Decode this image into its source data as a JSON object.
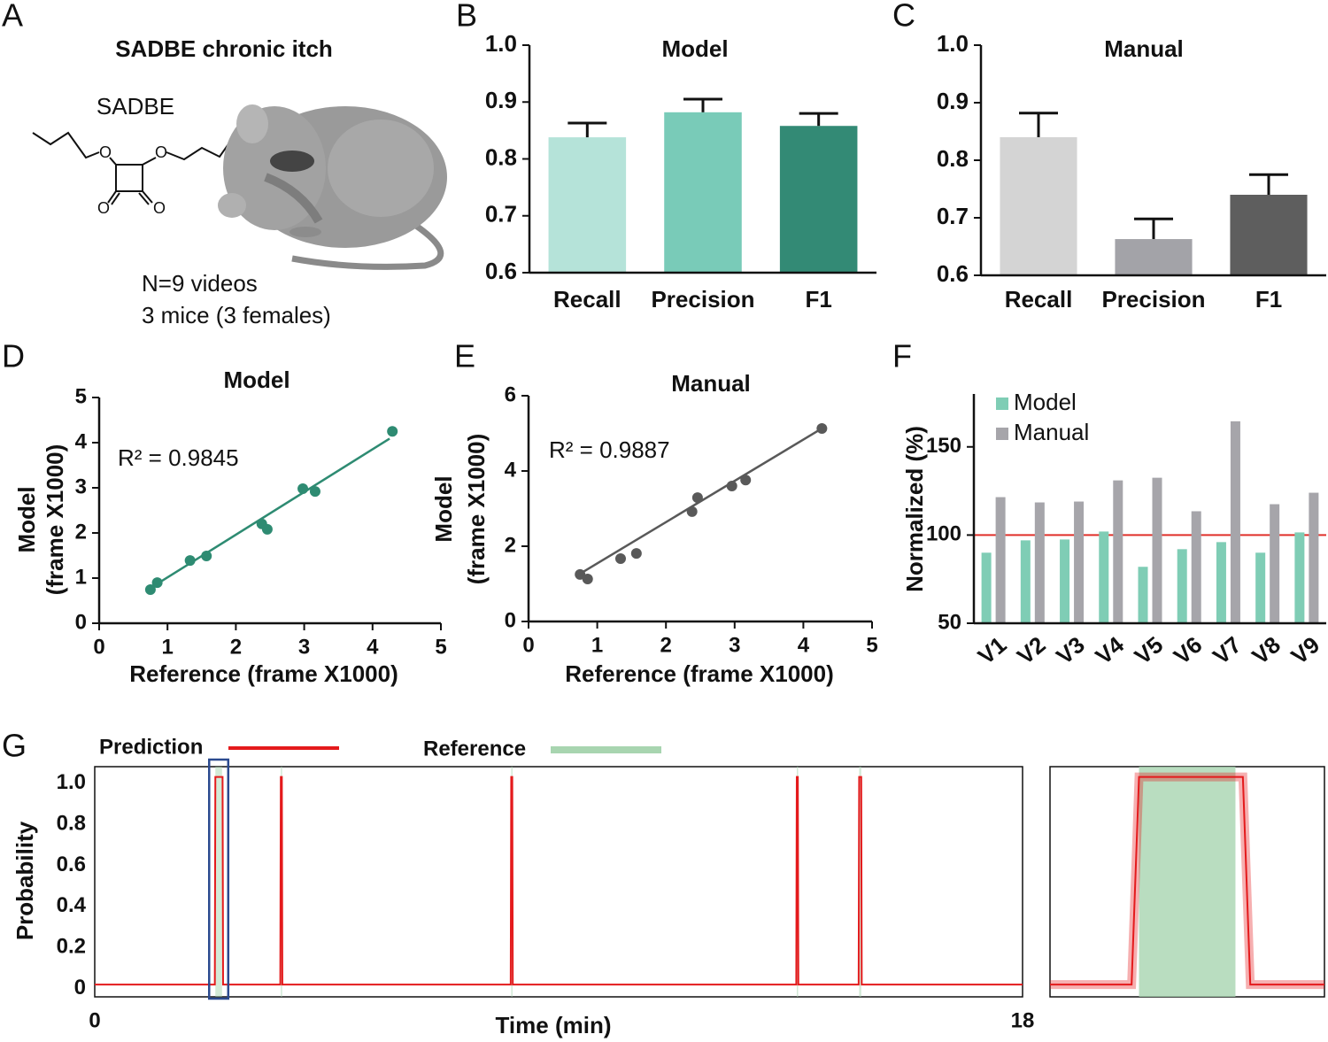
{
  "illustration": {
    "panel": "A",
    "title": "SADBE chronic itch",
    "compound": "SADBE",
    "structure_atoms": [
      "O",
      "O",
      "O",
      "O"
    ],
    "notes": [
      "N=9 videos",
      "3 mice (3 females)"
    ]
  },
  "chart_data": [
    {
      "type": "bar",
      "panel": "B",
      "title": "Model",
      "categories": [
        "Recall",
        "Precision",
        "F1"
      ],
      "values": [
        0.838,
        0.882,
        0.858
      ],
      "errors": [
        0.025,
        0.023,
        0.022
      ],
      "colors": [
        "#b5e3d9",
        "#79cbb8",
        "#338a75"
      ],
      "ylim": [
        0.6,
        1.0
      ],
      "yticks": [
        0.6,
        0.7,
        0.8,
        0.9,
        {
          "value": 1,
          "label": "1.0"
        }
      ]
    },
    {
      "type": "bar",
      "panel": "C",
      "title": "Manual",
      "categories": [
        "Recall",
        "Precision",
        "F1"
      ],
      "values": [
        0.84,
        0.663,
        0.74
      ],
      "errors": [
        0.042,
        0.035,
        0.035
      ],
      "colors": [
        "#d4d4d4",
        "#a3a3a8",
        "#5e5e5e"
      ],
      "ylim": [
        0.6,
        1.0
      ],
      "yticks": [
        0.6,
        0.7,
        0.8,
        0.9,
        {
          "value": 1,
          "label": "1.0"
        }
      ]
    },
    {
      "type": "scatter",
      "panel": "D",
      "title": "Model",
      "xlabel": "Reference (frame X1000)",
      "ylabel": [
        "Model",
        "(frame X1000)"
      ],
      "annotation": "R² = 0.9845",
      "color": "#2e8b72",
      "x": [
        0.75,
        0.85,
        1.33,
        1.57,
        2.38,
        2.46,
        2.98,
        3.16,
        4.29
      ],
      "values": [
        0.745,
        0.9,
        1.39,
        1.49,
        2.2,
        2.08,
        2.98,
        2.92,
        4.25
      ],
      "fit_line": {
        "x": [
          0.73,
          4.25
        ],
        "y": [
          0.76,
          4.09
        ]
      },
      "xlim": [
        0,
        5
      ],
      "ylim": [
        0,
        5
      ],
      "xticks": [
        0,
        1,
        2,
        3,
        4,
        5
      ],
      "yticks": [
        0,
        1,
        2,
        3,
        4,
        5
      ]
    },
    {
      "type": "scatter",
      "panel": "E",
      "title": "Manual",
      "xlabel": "Reference (frame X1000)",
      "ylabel": [
        "Model",
        "(frame X1000)"
      ],
      "annotation": "R² = 0.9887",
      "color": "#595959",
      "x": [
        0.75,
        0.86,
        1.34,
        1.57,
        2.38,
        2.46,
        2.96,
        3.16,
        4.27
      ],
      "values": [
        1.25,
        1.13,
        1.67,
        1.81,
        2.92,
        3.29,
        3.6,
        3.76,
        5.13
      ],
      "fit_line": {
        "x": [
          0.75,
          4.27
        ],
        "y": [
          1.27,
          5.13
        ]
      },
      "xlim": [
        0,
        5
      ],
      "ylim": [
        0,
        6
      ],
      "xticks": [
        0,
        1,
        2,
        3,
        4,
        5
      ],
      "yticks": [
        0,
        2,
        4,
        6
      ]
    },
    {
      "type": "bar",
      "panel": "F",
      "ylabel": "Normalized (%)",
      "categories": [
        "V1",
        "V2",
        "V3",
        "V4",
        "V5",
        "V6",
        "V7",
        "V8",
        "V9"
      ],
      "series": [
        {
          "name": "Model",
          "color": "#7fcdb5",
          "values": [
            90,
            97,
            97.5,
            102,
            82,
            92,
            96,
            90,
            101.5
          ]
        },
        {
          "name": "Manual",
          "color": "#a6a5aa",
          "values": [
            121.5,
            118.5,
            119,
            131,
            132.5,
            113.5,
            164.5,
            117.5,
            124
          ]
        }
      ],
      "reference_line": {
        "value": 100,
        "color": "#e0302a"
      },
      "legend": "upper-left",
      "ylim": [
        50,
        180
      ],
      "yticks": [
        50,
        100,
        150
      ]
    },
    {
      "type": "line",
      "panel": "G",
      "xlabel": "Time (min)",
      "ylabel": "Probability",
      "series": [
        {
          "name": "Prediction",
          "color": "#e41a1c",
          "x": [
            0,
            2.33,
            2.34,
            2.48,
            2.49,
            3.6,
            3.61,
            3.63,
            3.64,
            8.07,
            8.08,
            8.1,
            8.11,
            13.61,
            13.62,
            13.64,
            13.65,
            14.82,
            14.83,
            14.87,
            14.88,
            18
          ],
          "values": [
            0.02,
            0.02,
            1.03,
            1.03,
            0.02,
            0.02,
            1.03,
            1.03,
            0.02,
            0.02,
            1.03,
            1.03,
            0.02,
            0.02,
            1.03,
            1.03,
            0.02,
            0.02,
            1.03,
            1.03,
            0.02,
            0.02
          ]
        }
      ],
      "reference": {
        "name": "Reference",
        "color": "#a8d5b0",
        "intervals": [
          [
            2.34,
            2.47
          ],
          [
            3.61,
            3.63
          ],
          [
            8.08,
            8.1
          ],
          [
            13.62,
            13.64
          ],
          [
            14.83,
            14.87
          ]
        ]
      },
      "inset": {
        "xlim": [
          2.22,
          2.59
        ]
      },
      "xlim": [
        0,
        18
      ],
      "ylim": [
        -0.04,
        1.08
      ],
      "xticks": [
        0,
        18
      ],
      "yticks": [
        0,
        0.2,
        0.4,
        0.6,
        0.8,
        {
          "value": 1,
          "label": "1.0"
        }
      ]
    }
  ]
}
